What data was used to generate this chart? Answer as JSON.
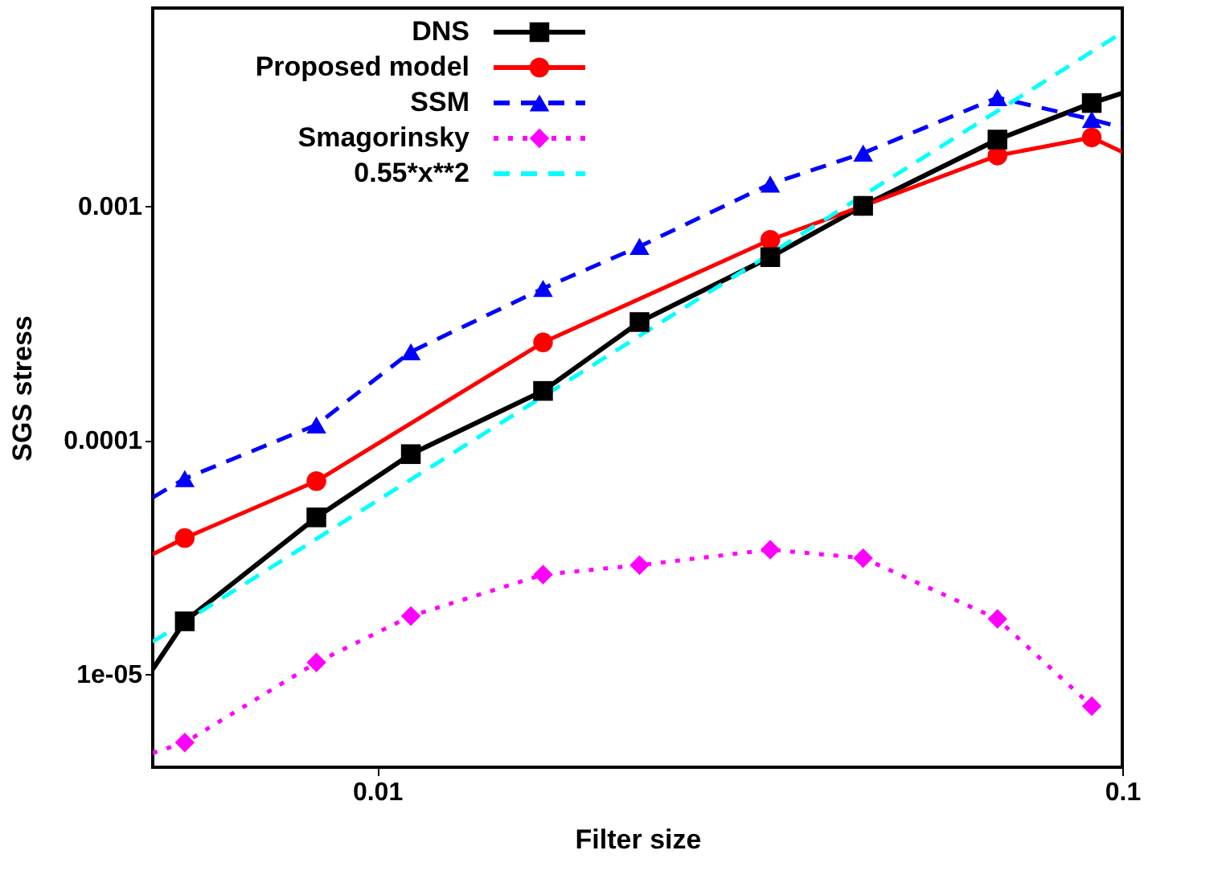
{
  "chart_data": {
    "type": "line",
    "xlabel": "Filter size",
    "ylabel": "SGS stress",
    "log": "xy",
    "grid": false,
    "legend": "top left",
    "xlim": [
      0.005,
      0.1
    ],
    "xticks": [
      0.01,
      0.1
    ],
    "ylim": [
      4e-06,
      0.007
    ],
    "yticks": [
      {
        "value": 1e-05,
        "label": "1e-05"
      },
      0.0001,
      0.001
    ],
    "series": [
      {
        "name": "DNS",
        "color": "#000000",
        "marker": "square",
        "line_style": "solid",
        "x": [
          0.005,
          0.00552,
          0.00829,
          0.0111,
          0.0167,
          0.0225,
          0.0337,
          0.0449,
          0.068,
          0.091,
          0.1
        ],
        "values": [
          1.05e-05,
          1.68e-05,
          4.67e-05,
          8.7e-05,
          0.000162,
          0.000319,
          0.000604,
          0.001,
          0.00192,
          0.00275,
          0.00303
        ]
      },
      {
        "name": "Proposed model",
        "color": "#ff0000",
        "marker": "circle",
        "line_style": "solid",
        "x": [
          0.005,
          0.00552,
          0.00829,
          0.0167,
          0.0337,
          0.0449,
          0.068,
          0.091,
          0.1
        ],
        "values": [
          3.25e-05,
          3.81e-05,
          6.67e-05,
          0.000261,
          0.000716,
          0.001,
          0.00164,
          0.00196,
          0.0017
        ]
      },
      {
        "name": "SSM",
        "color": "#0000ff",
        "marker": "triangle",
        "line_style": "dashed",
        "x": [
          0.005,
          0.00552,
          0.00829,
          0.0111,
          0.0167,
          0.0225,
          0.0337,
          0.0449,
          0.068,
          0.091,
          0.1
        ],
        "values": [
          5.68e-05,
          6.84e-05,
          0.000116,
          0.000238,
          0.000444,
          0.000671,
          0.00124,
          0.00168,
          0.0029,
          0.00234,
          0.00216
        ]
      },
      {
        "name": "Smagorinsky",
        "color": "#ff00ff",
        "marker": "diamond",
        "line_style": "dotted",
        "x": [
          0.005,
          0.00552,
          0.00829,
          0.0111,
          0.0167,
          0.0225,
          0.0337,
          0.0449,
          0.068,
          0.091
        ],
        "values": [
          4.6e-06,
          5.1e-06,
          1.12e-05,
          1.77e-05,
          2.66e-05,
          2.92e-05,
          3.4e-05,
          3.13e-05,
          1.72e-05,
          7.3e-06
        ]
      },
      {
        "name": "0.55*x**2",
        "color": "#00ffff",
        "marker": "none",
        "line_style": "dashed",
        "x": [
          0.005,
          0.1
        ],
        "values": [
          1.375e-05,
          0.0055
        ]
      }
    ]
  }
}
